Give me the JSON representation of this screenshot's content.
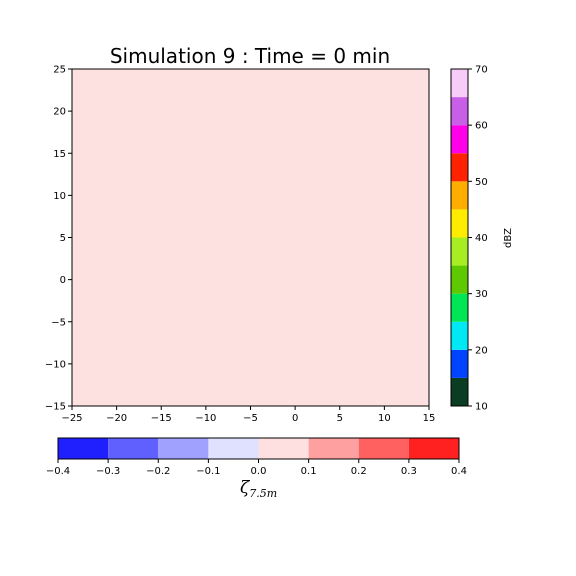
{
  "chart_data": [
    {
      "type": "heatmap",
      "title": "Simulation 9 : Time = 0 min",
      "xlim": [
        -25,
        15
      ],
      "ylim": [
        -15,
        25
      ],
      "xticks": [
        "−25",
        "−20",
        "−15",
        "−10",
        "−5",
        "0",
        "5",
        "10",
        "15"
      ],
      "yticks": [
        "−15",
        "−10",
        "−5",
        "0",
        "5",
        "10",
        "15",
        "20",
        "25"
      ],
      "field_value_range": [
        0.0,
        0.1
      ],
      "field_color": "#fde0e0",
      "grid": false
    },
    {
      "type": "colorbar",
      "orientation": "vertical",
      "label": "dBZ",
      "range": [
        10,
        70
      ],
      "ticks": [
        "10",
        "20",
        "30",
        "40",
        "50",
        "60",
        "70"
      ],
      "boundaries": [
        10,
        15,
        20,
        25,
        30,
        35,
        40,
        45,
        50,
        55,
        60,
        65,
        70
      ],
      "colors": [
        "#0b3d22",
        "#0044ff",
        "#00e8f4",
        "#00e655",
        "#5ec800",
        "#a6ee22",
        "#ffec00",
        "#ffae00",
        "#ff2200",
        "#ff00e8",
        "#c760e6",
        "#f8ccf8"
      ]
    },
    {
      "type": "colorbar",
      "orientation": "horizontal",
      "label_main": "ζ",
      "label_sub": "7.5m",
      "range": [
        -0.4,
        0.4
      ],
      "ticks": [
        "−0.4",
        "−0.3",
        "−0.2",
        "−0.1",
        "0.0",
        "0.1",
        "0.2",
        "0.3",
        "0.4"
      ],
      "boundaries": [
        -0.4,
        -0.3,
        -0.2,
        -0.1,
        0.0,
        0.1,
        0.2,
        0.3,
        0.4
      ],
      "colors": [
        "#2020ff",
        "#6060ff",
        "#a0a0ff",
        "#e0e0ff",
        "#ffe0e0",
        "#ffa0a0",
        "#ff6060",
        "#ff2020"
      ]
    }
  ]
}
